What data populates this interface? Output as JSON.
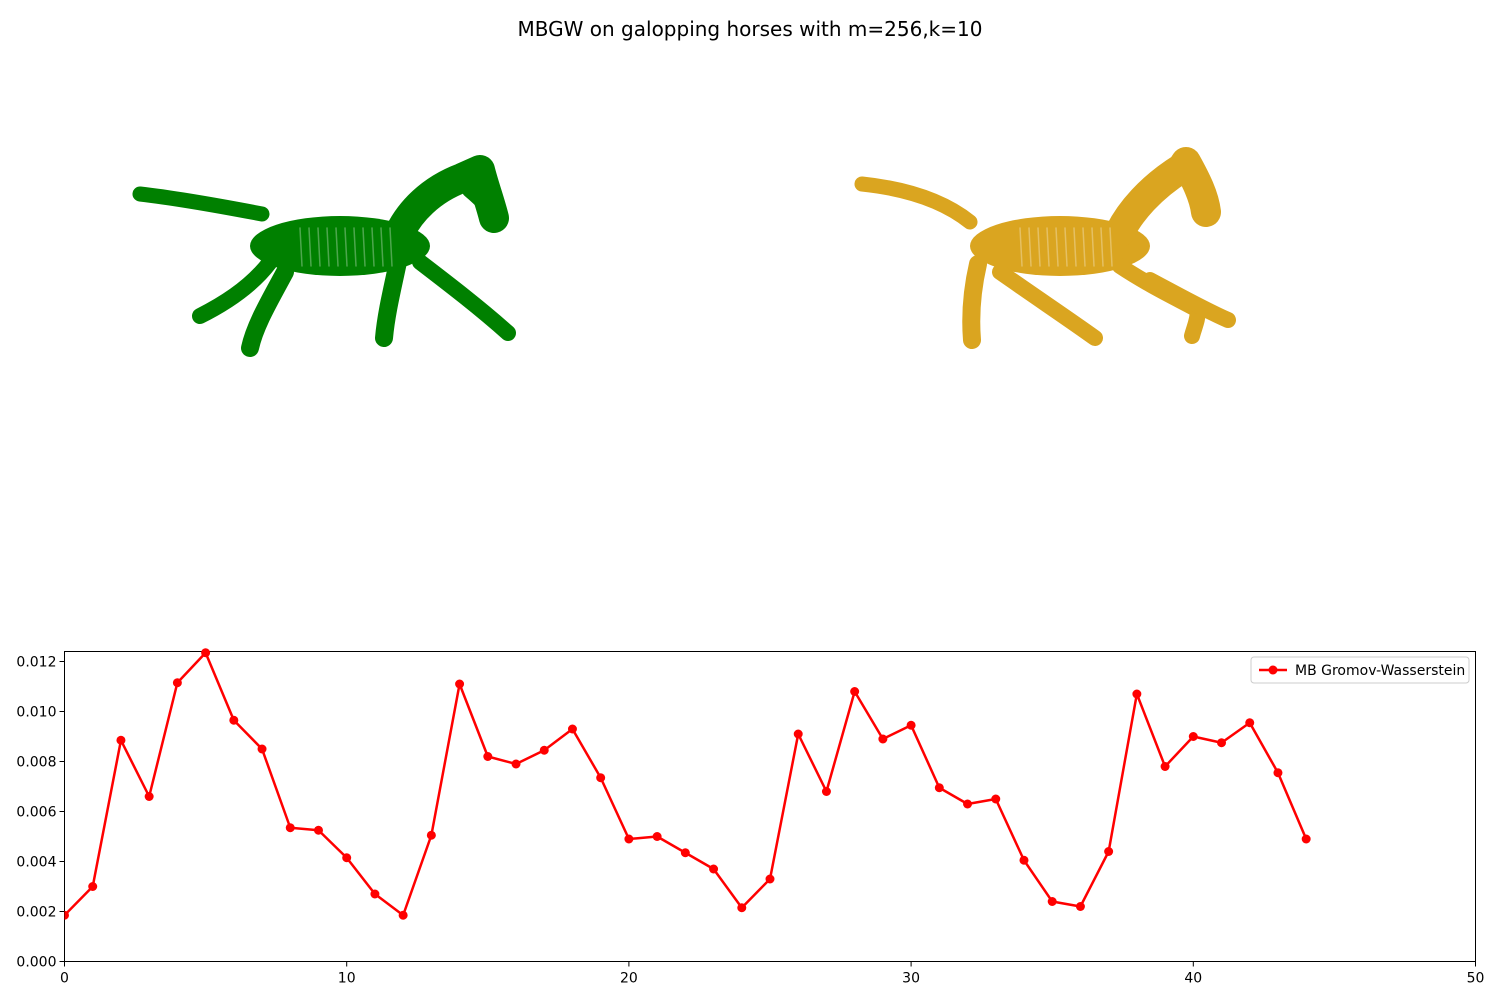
{
  "figure": {
    "title": "MBGW on galopping horses with m=256,k=10",
    "horse_colors": [
      "#008000",
      "#DAA520"
    ],
    "line_color": "#FF0000"
  },
  "chart_data": {
    "type": "line",
    "title": "MBGW on galopping horses with m=256,k=10",
    "xlabel": "",
    "ylabel": "",
    "xlim": [
      0,
      50
    ],
    "ylim": [
      0,
      0.0124
    ],
    "grid": false,
    "legend_position": "top-right",
    "x_ticks": [
      0,
      10,
      20,
      30,
      40,
      50
    ],
    "x_tick_labels": [
      "0",
      "10",
      "20",
      "30",
      "40",
      "50"
    ],
    "y_ticks": [
      0,
      0.002,
      0.004,
      0.006,
      0.008,
      0.01,
      0.012
    ],
    "y_tick_labels": [
      "0.000",
      "0.002",
      "0.004",
      "0.006",
      "0.008",
      "0.010",
      "0.012"
    ],
    "series": [
      {
        "name": "MB Gromov-Wasserstein",
        "color": "#FF0000",
        "x": [
          0,
          1,
          2,
          3,
          4,
          5,
          6,
          7,
          8,
          9,
          10,
          11,
          12,
          13,
          14,
          15,
          16,
          17,
          18,
          19,
          20,
          21,
          22,
          23,
          24,
          25,
          26,
          27,
          28,
          29,
          30,
          31,
          32,
          33,
          34,
          35,
          36,
          37,
          38,
          39,
          40,
          41,
          42,
          43,
          44
        ],
        "values": [
          0.00185,
          0.003,
          0.00885,
          0.0066,
          0.01115,
          0.01235,
          0.00965,
          0.0085,
          0.00535,
          0.00525,
          0.00415,
          0.0027,
          0.00185,
          0.00505,
          0.0111,
          0.0082,
          0.0079,
          0.00845,
          0.0093,
          0.00735,
          0.0049,
          0.005,
          0.00435,
          0.0037,
          0.00215,
          0.0033,
          0.0091,
          0.0068,
          0.0108,
          0.0089,
          0.00945,
          0.00695,
          0.0063,
          0.0065,
          0.00405,
          0.0024,
          0.0022,
          0.0044,
          0.0107,
          0.0078,
          0.009,
          0.00875,
          0.00955,
          0.00755,
          0.0049
        ]
      }
    ]
  }
}
